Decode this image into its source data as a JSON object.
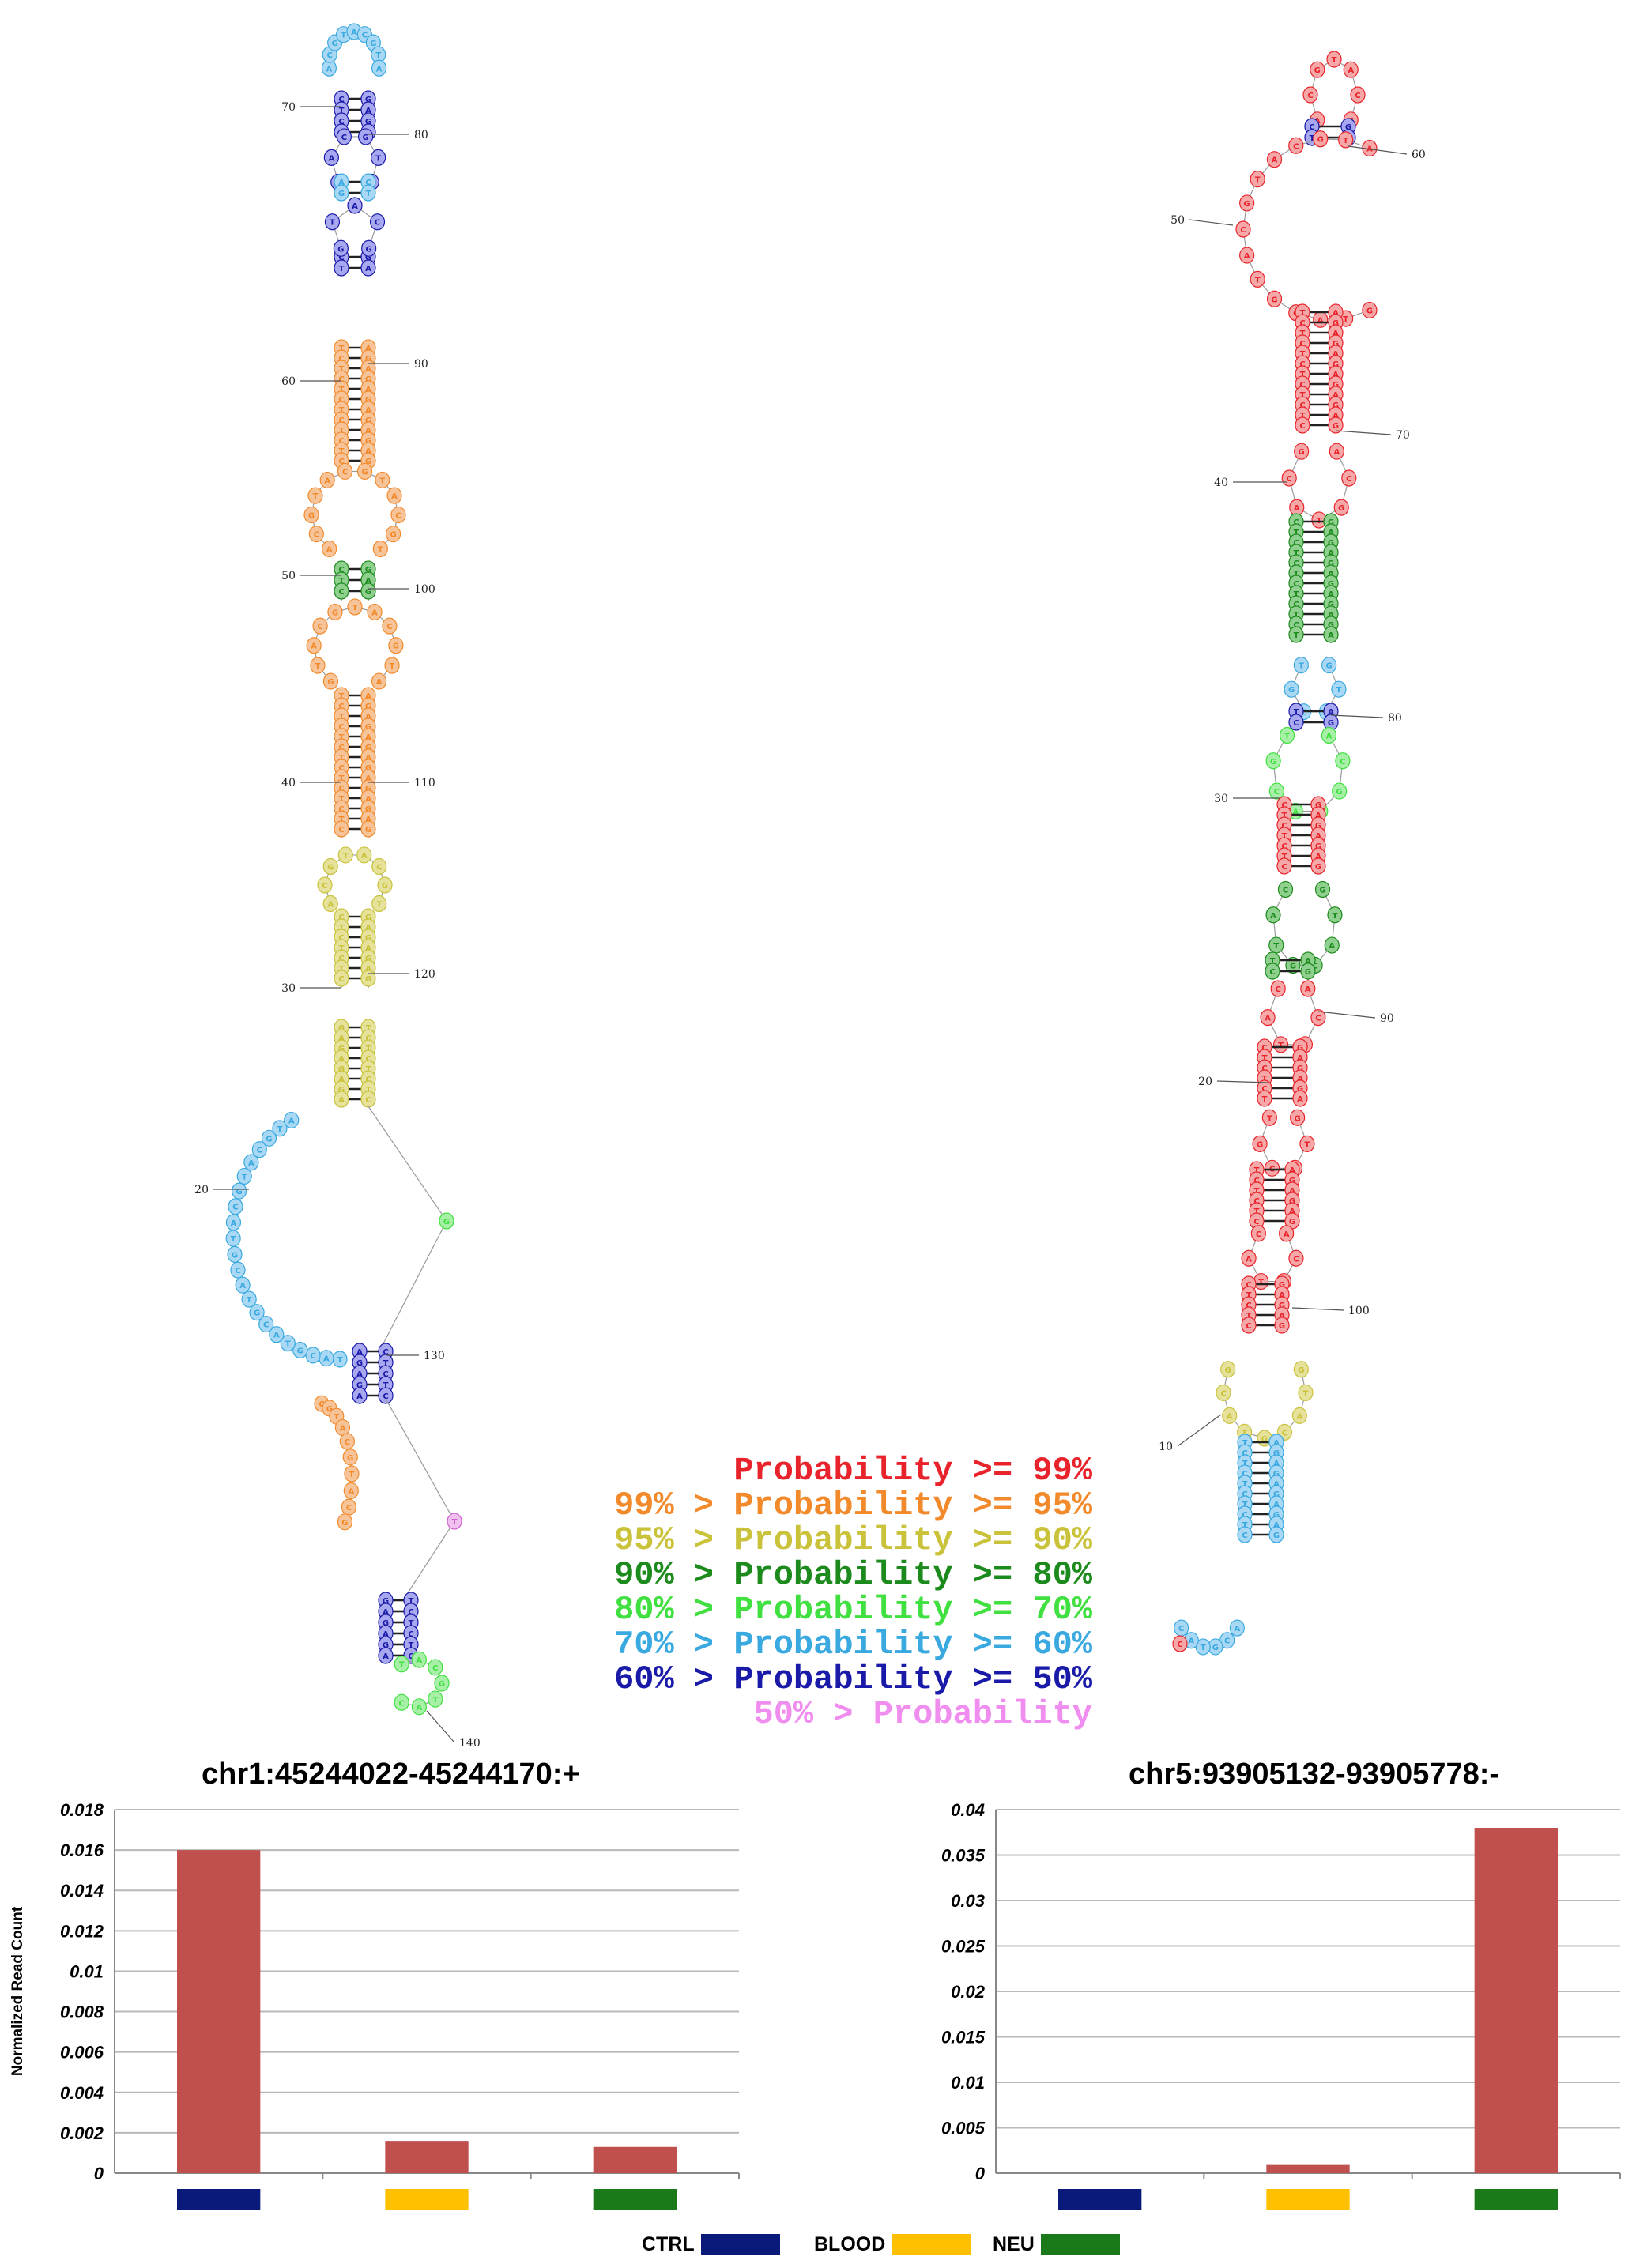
{
  "probability_legend": {
    "lines": [
      {
        "prefix": "",
        "label": "Probability >= 99%",
        "color": "#e8232b"
      },
      {
        "prefix": "99% > ",
        "label": "Probability >= 95%",
        "color": "#f28a2b"
      },
      {
        "prefix": "95% > ",
        "label": "Probability >= 90%",
        "color": "#c9c23a"
      },
      {
        "prefix": "90% > ",
        "label": "Probability >= 80%",
        "color": "#1c8a1c"
      },
      {
        "prefix": "80% > ",
        "label": "Probability >= 70%",
        "color": "#3fe03f"
      },
      {
        "prefix": "70% > ",
        "label": "Probability >= 60%",
        "color": "#39a9e0"
      },
      {
        "prefix": "60% > ",
        "label": "Probability >= 50%",
        "color": "#1a1aa8"
      },
      {
        "prefix": "50% > ",
        "label": "Probability",
        "color": "#f08ef0"
      }
    ]
  },
  "structure_left": {
    "position_labels": [
      "70",
      "80",
      "60",
      "90",
      "50",
      "100",
      "40",
      "110",
      "30",
      "120",
      "20",
      "130",
      "140"
    ]
  },
  "structure_right": {
    "position_labels": [
      "60",
      "50",
      "70",
      "40",
      "80",
      "30",
      "90",
      "20",
      "100",
      "10"
    ]
  },
  "chart_data": [
    {
      "type": "bar",
      "title": "chr1:45244022-45244170:+",
      "ylabel": "Normalized Read Count",
      "xlabel": "",
      "categories": [
        "CTRL",
        "BLOOD",
        "NEU"
      ],
      "values": [
        0.016,
        0.0016,
        0.0013
      ],
      "ylim": [
        0,
        0.018
      ],
      "yticks": [
        "0",
        "0.002",
        "0.004",
        "0.006",
        "0.008",
        "0.01",
        "0.012",
        "0.014",
        "0.016",
        "0.018"
      ],
      "grid": true,
      "bar_color": "#c0504d",
      "legend": "bottom"
    },
    {
      "type": "bar",
      "title": "chr5:93905132-93905778:-",
      "ylabel": "",
      "xlabel": "",
      "categories": [
        "CTRL",
        "BLOOD",
        "NEU"
      ],
      "values": [
        0,
        0.0009,
        0.038
      ],
      "ylim": [
        0,
        0.04
      ],
      "yticks": [
        "0",
        "0.005",
        "0.01",
        "0.015",
        "0.02",
        "0.025",
        "0.03",
        "0.035",
        "0.04"
      ],
      "grid": true,
      "bar_color": "#c0504d",
      "legend": "bottom"
    }
  ],
  "group_legend": [
    {
      "label": "CTRL",
      "color": "#0a1a7a"
    },
    {
      "label": "BLOOD",
      "color": "#ffc000"
    },
    {
      "label": "NEU",
      "color": "#1a7a1a"
    }
  ]
}
